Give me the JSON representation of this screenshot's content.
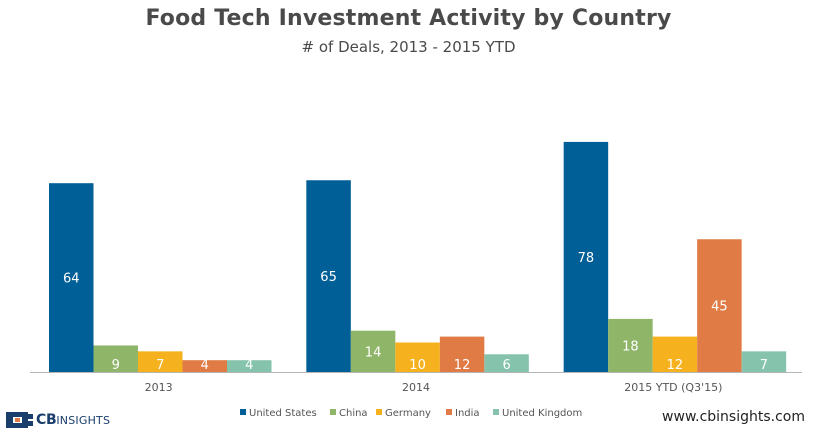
{
  "colors": {
    "United States": "#005f96",
    "China": "#8fb569",
    "Germany": "#f5b21e",
    "India": "#e07b46",
    "United Kingdom": "#86c3ad"
  },
  "footer": {
    "brand_bold": "CB",
    "brand_light": "INSIGHTS",
    "logo_icon": "cb-insights-logo-icon",
    "website": "www.cbinsights.com"
  },
  "chart_data": {
    "type": "bar",
    "title": "Food Tech Investment Activity by Country",
    "subtitle": "# of Deals, 2013 - 2015 YTD",
    "categories": [
      "2013",
      "2014",
      "2015 YTD (Q3'15)"
    ],
    "series": [
      {
        "name": "United States",
        "values": [
          64,
          65,
          78
        ]
      },
      {
        "name": "China",
        "values": [
          9,
          14,
          18
        ]
      },
      {
        "name": "Germany",
        "values": [
          7,
          10,
          12
        ]
      },
      {
        "name": "India",
        "values": [
          4,
          12,
          45
        ]
      },
      {
        "name": "United Kingdom",
        "values": [
          4,
          6,
          7
        ]
      }
    ],
    "xlabel": "",
    "ylabel": "",
    "ylim": [
      0,
      80
    ],
    "grid": false,
    "data_labels": true,
    "legend_position": "bottom"
  }
}
